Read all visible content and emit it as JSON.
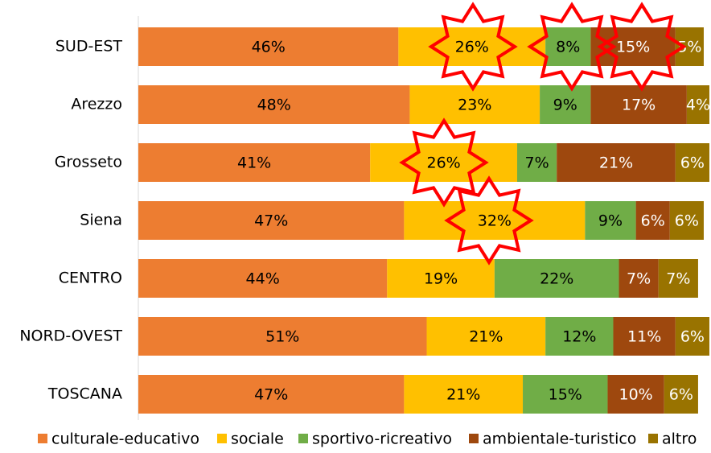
{
  "chart_data": {
    "type": "stacked-bar-horizontal",
    "categories": [
      "SUD-EST",
      "Arezzo",
      "Grosseto",
      "Siena",
      "CENTRO",
      "NORD-OVEST",
      "TOSCANA"
    ],
    "series": [
      {
        "name": "culturale-educativo",
        "color": "#ED7D31",
        "values": [
          46,
          48,
          41,
          47,
          44,
          51,
          47
        ],
        "value_labels": [
          "46%",
          "48%",
          "41%",
          "47%",
          "44%",
          "51%",
          "47%"
        ]
      },
      {
        "name": "sociale",
        "color": "#FFC000",
        "values": [
          26,
          23,
          26,
          32,
          19,
          21,
          21
        ],
        "value_labels": [
          "26%",
          "23%",
          "26%",
          "32%",
          "19%",
          "21%",
          "21%"
        ]
      },
      {
        "name": "sportivo-ricreativo",
        "color": "#70AD47",
        "values": [
          8,
          9,
          7,
          9,
          22,
          12,
          15
        ],
        "value_labels": [
          "8%",
          "9%",
          "7%",
          "9%",
          "22%",
          "12%",
          "15%"
        ]
      },
      {
        "name": "ambientale-turistico",
        "color": "#9E480E",
        "values": [
          15,
          17,
          21,
          6,
          7,
          11,
          10
        ],
        "value_labels": [
          "15%",
          "17%",
          "21%",
          "6%",
          "7%",
          "11%",
          "10%"
        ]
      },
      {
        "name": "altro",
        "color": "#997300",
        "values": [
          5,
          4,
          6,
          6,
          7,
          6,
          6
        ],
        "value_labels": [
          "5%",
          "4%",
          "6%",
          "6%",
          "7%",
          "6%",
          "6%"
        ]
      }
    ],
    "legend": "bottom"
  }
}
